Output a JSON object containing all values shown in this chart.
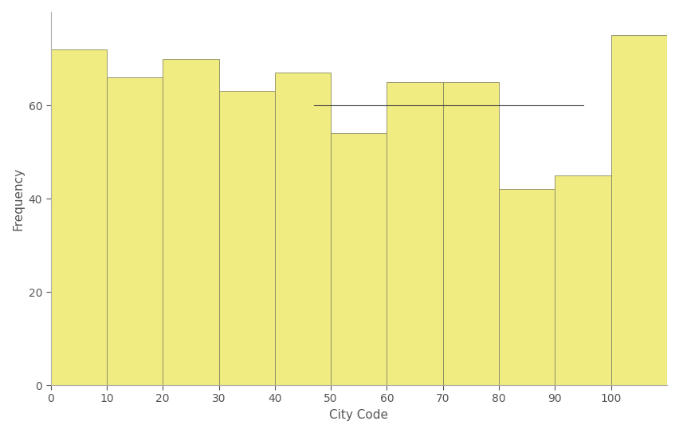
{
  "bin_edges": [
    0,
    10,
    20,
    30,
    40,
    50,
    60,
    70,
    80,
    90,
    100,
    110
  ],
  "frequencies": [
    72,
    66,
    70,
    63,
    67,
    54,
    65,
    65,
    42,
    45,
    75
  ],
  "bar_color": "#f0ec82",
  "bar_edgecolor": "#888860",
  "hline_y": 60,
  "hline_xstart": 47,
  "hline_xend": 95,
  "hline_color": "#444444",
  "hline_linewidth": 0.8,
  "xlabel": "City Code",
  "ylabel": "Frequency",
  "xticks": [
    0,
    10,
    20,
    30,
    40,
    50,
    60,
    70,
    80,
    90,
    100
  ],
  "yticks": [
    0,
    20,
    40,
    60
  ],
  "xlim": [
    0,
    110
  ],
  "ylim": [
    0,
    80
  ],
  "background_color": "#ffffff",
  "left_spine_color": "#aaaaaa",
  "bottom_spine_color": "#aaaaaa",
  "tick_label_fontsize": 10,
  "axis_label_fontsize": 11,
  "figwidth": 8.52,
  "figheight": 5.43,
  "dpi": 100
}
